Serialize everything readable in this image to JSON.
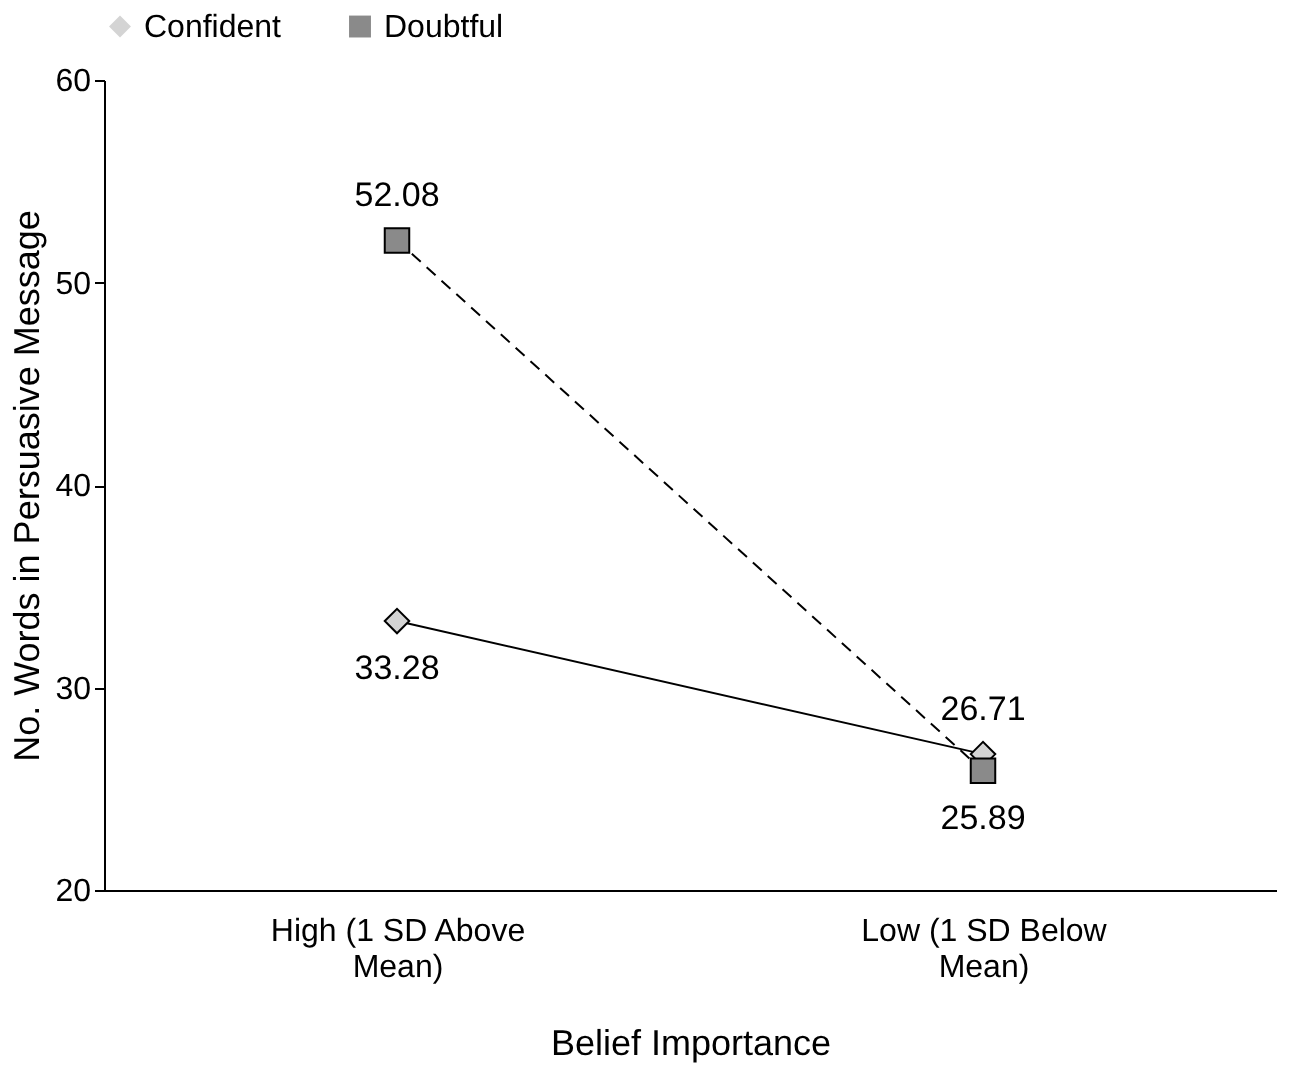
{
  "chart_data": {
    "type": "line",
    "xlabel": "Belief Importance",
    "ylabel": "No. Words in Persuasive Message",
    "categories": [
      "High (1 SD Above Mean)",
      "Low (1 SD Below Mean)"
    ],
    "series": [
      {
        "name": "Confident",
        "color": "#d4d4d4",
        "values": [
          33.28,
          26.71
        ],
        "marker": "diamond",
        "line_style": "solid"
      },
      {
        "name": "Doubtful",
        "color": "#8a8a8a",
        "values": [
          52.08,
          25.89
        ],
        "marker": "square",
        "line_style": "dashed"
      }
    ],
    "ylim": [
      20,
      60
    ],
    "yticks": [
      20,
      30,
      40,
      50,
      60
    ],
    "grid": false,
    "legend": "top",
    "data_labels": true
  }
}
